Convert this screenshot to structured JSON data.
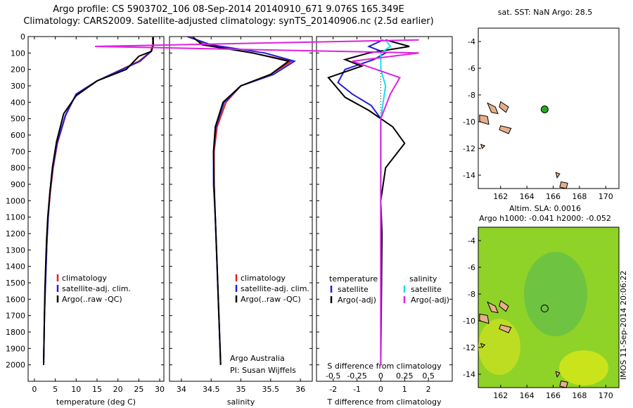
{
  "header": {
    "line1": "Argo profile: CS 5903702_106 08-Sep-2014 20140910_671 9.076S 165.349E",
    "line2": "Climatology: CARS2009. Satellite-adjusted climatology: synTS_20140906.nc (2.5d earlier)"
  },
  "side": {
    "sst_title": "sat. SST: NaN Argo: 28.5",
    "sla_title1": "Altim. SLA: 0.0016",
    "sla_title2": "Argo h1000: -0.041 h2000: -0.052",
    "timestamp": "IMOS 11-Sep-2014 20:06:22"
  },
  "colors": {
    "climatology": "#e0201c",
    "satellite": "#1f1fd8",
    "argo": "#000000",
    "sat_salinity": "#18e0f0",
    "argo_salinity": "#e020e0",
    "land": "#e8b08a",
    "marker": "#22aa22",
    "sla_bg": "#8fd228"
  },
  "chart_data": [
    {
      "type": "line",
      "name": "temperature-profile",
      "xlabel": "temperature (deg C)",
      "ylabel": "",
      "xlim": [
        -1.5,
        31
      ],
      "ylim": [
        2100,
        0
      ],
      "xticks": [
        0,
        5,
        10,
        15,
        20,
        25,
        30
      ],
      "yticks": [
        0,
        100,
        200,
        300,
        400,
        500,
        600,
        700,
        800,
        900,
        1000,
        1100,
        1200,
        1300,
        1400,
        1500,
        1600,
        1700,
        1800,
        1900,
        2000
      ],
      "legend": [
        "climatology",
        "satellite-adj. clim.",
        "Argo(..raw -QC)"
      ],
      "legend_position": "lower-middle",
      "series": [
        {
          "name": "climatology",
          "color": "climatology",
          "x": [
            28.4,
            28.3,
            27.9,
            25,
            20,
            15,
            10,
            7.5,
            5.5,
            4.5,
            3.8,
            3.3,
            3.0,
            2.8,
            2.6,
            2.4,
            2.3,
            2.2
          ],
          "y": [
            0,
            50,
            90,
            150,
            210,
            270,
            350,
            480,
            650,
            800,
            950,
            1100,
            1250,
            1400,
            1550,
            1700,
            1850,
            2000
          ]
        },
        {
          "name": "satellite-adj. clim.",
          "color": "satellite",
          "x": [
            28.5,
            28.4,
            28.0,
            25.3,
            20.2,
            15,
            10,
            7.4,
            5.4,
            4.4,
            3.7,
            3.3,
            3.0,
            2.8,
            2.6,
            2.4,
            2.3,
            2.2
          ],
          "y": [
            0,
            50,
            90,
            150,
            210,
            270,
            350,
            480,
            650,
            800,
            950,
            1100,
            1250,
            1400,
            1550,
            1700,
            1850,
            2000
          ]
        },
        {
          "name": "Argo(..raw -QC)",
          "color": "argo",
          "x": [
            28.3,
            28.5,
            28.0,
            25,
            22,
            15,
            10,
            7.0,
            5.3,
            4.3,
            3.7,
            3.2,
            2.9,
            2.7,
            2.5,
            2.4,
            2.3,
            2.2
          ],
          "y": [
            5,
            50,
            90,
            120,
            200,
            270,
            360,
            470,
            640,
            800,
            950,
            1100,
            1250,
            1400,
            1550,
            1700,
            1850,
            2000
          ]
        }
      ]
    },
    {
      "type": "line",
      "name": "salinity-profile",
      "xlabel": "salinity",
      "ylabel": "",
      "xlim": [
        33.8,
        36.2
      ],
      "ylim": [
        2100,
        0
      ],
      "xticks": [
        34,
        34.5,
        35,
        35.5,
        36
      ],
      "legend": [
        "climatology",
        "satellite-adj. clim.",
        "Argo(..raw -QC)"
      ],
      "legend_position": "lower-middle",
      "annotation": [
        "Argo Australia",
        "PI: Susan Wijffels"
      ],
      "series": [
        {
          "name": "climatology",
          "color": "climatology",
          "x": [
            34.15,
            34.4,
            35.2,
            35.85,
            35.5,
            35.0,
            34.75,
            34.6,
            34.55,
            34.55,
            34.57,
            34.6,
            34.63,
            34.65,
            34.66
          ],
          "y": [
            0,
            50,
            100,
            150,
            230,
            300,
            400,
            550,
            700,
            900,
            1100,
            1400,
            1700,
            1900,
            2000
          ]
        },
        {
          "name": "satellite-adj. clim.",
          "color": "satellite",
          "x": [
            34.1,
            34.5,
            35.4,
            35.9,
            35.55,
            35.0,
            34.72,
            34.58,
            34.54,
            34.54,
            34.57,
            34.6,
            34.63,
            34.65,
            34.66
          ],
          "y": [
            0,
            50,
            100,
            150,
            230,
            300,
            400,
            550,
            700,
            900,
            1100,
            1400,
            1700,
            1900,
            2000
          ]
        },
        {
          "name": "Argo(..raw -QC)",
          "color": "argo",
          "x": [
            34.2,
            34.35,
            35.2,
            35.8,
            35.5,
            35.0,
            34.7,
            34.57,
            34.54,
            34.55,
            34.57,
            34.6,
            34.63,
            34.65,
            34.66
          ],
          "y": [
            5,
            50,
            100,
            150,
            230,
            300,
            400,
            550,
            700,
            900,
            1100,
            1400,
            1700,
            1900,
            2000
          ]
        }
      ]
    },
    {
      "type": "line",
      "name": "difference-profile",
      "xlabel": "T difference from climatology",
      "xlabel2": "S difference from climatology",
      "xlim": [
        -2.7,
        3.0
      ],
      "ylim": [
        2100,
        0
      ],
      "xticks": [
        -2,
        -1,
        0,
        1,
        2
      ],
      "sticks": [
        -0.5,
        -0.25,
        0,
        0.25,
        0.5
      ],
      "sticklabels": [
        "-0.5",
        "-0.25",
        "0",
        "0.25",
        "0.5"
      ],
      "legend_headers": [
        "temperature",
        "salinity"
      ],
      "legend": [
        "satellite",
        "Argo(-adj)",
        "satellite",
        "Argo(-adj)"
      ],
      "legend_position": "lower-middle",
      "series": [
        {
          "name": "satellite",
          "group": "temperature",
          "color": "satellite",
          "x": [
            0.1,
            -0.5,
            0.2,
            -0.3,
            -1.5,
            -1.8,
            -1.2,
            -0.4,
            0,
            0,
            0,
            0
          ],
          "y": [
            20,
            60,
            100,
            140,
            200,
            280,
            350,
            420,
            500,
            800,
            1500,
            2000
          ]
        },
        {
          "name": "Argo(-adj)",
          "group": "temperature",
          "color": "argo",
          "x": [
            0.2,
            1.2,
            -0.5,
            -1.5,
            -0.8,
            -2.2,
            -1.5,
            -0.5,
            0.5,
            1.0,
            0.2,
            0,
            0.05,
            0
          ],
          "y": [
            20,
            60,
            100,
            140,
            180,
            250,
            370,
            450,
            550,
            650,
            800,
            1000,
            1200,
            2000
          ]
        },
        {
          "name": "satellite",
          "group": "salinity",
          "color": "sat_salinity",
          "x": [
            0.05,
            0.1,
            0,
            0,
            0.05,
            0,
            0,
            0
          ],
          "y": [
            20,
            60,
            100,
            200,
            300,
            500,
            1200,
            2000
          ]
        },
        {
          "name": "Argo(-adj)",
          "group": "salinity",
          "color": "argo_salinity",
          "x": [
            0.4,
            -3.0,
            0.4,
            -0.3,
            0.2,
            0.1,
            0,
            0,
            0
          ],
          "y": [
            20,
            60,
            100,
            150,
            250,
            350,
            500,
            1500,
            2000
          ]
        }
      ]
    }
  ],
  "maps": [
    {
      "name": "sst-map",
      "xticks": [
        162,
        164,
        166,
        168,
        170
      ],
      "yticks": [
        -4,
        -6,
        -8,
        -10,
        -12,
        -14
      ],
      "xlim": [
        160.3,
        171
      ],
      "ylim": [
        -15,
        -3
      ],
      "marker": {
        "lon": 165.35,
        "lat": -9.08
      }
    },
    {
      "name": "sla-map",
      "xticks": [
        162,
        164,
        166,
        168,
        170
      ],
      "yticks": [
        -4,
        -6,
        -8,
        -10,
        -12,
        -14
      ],
      "xlim": [
        160.3,
        171
      ],
      "ylim": [
        -15,
        -3
      ],
      "marker": {
        "lon": 165.35,
        "lat": -9.08
      }
    }
  ]
}
